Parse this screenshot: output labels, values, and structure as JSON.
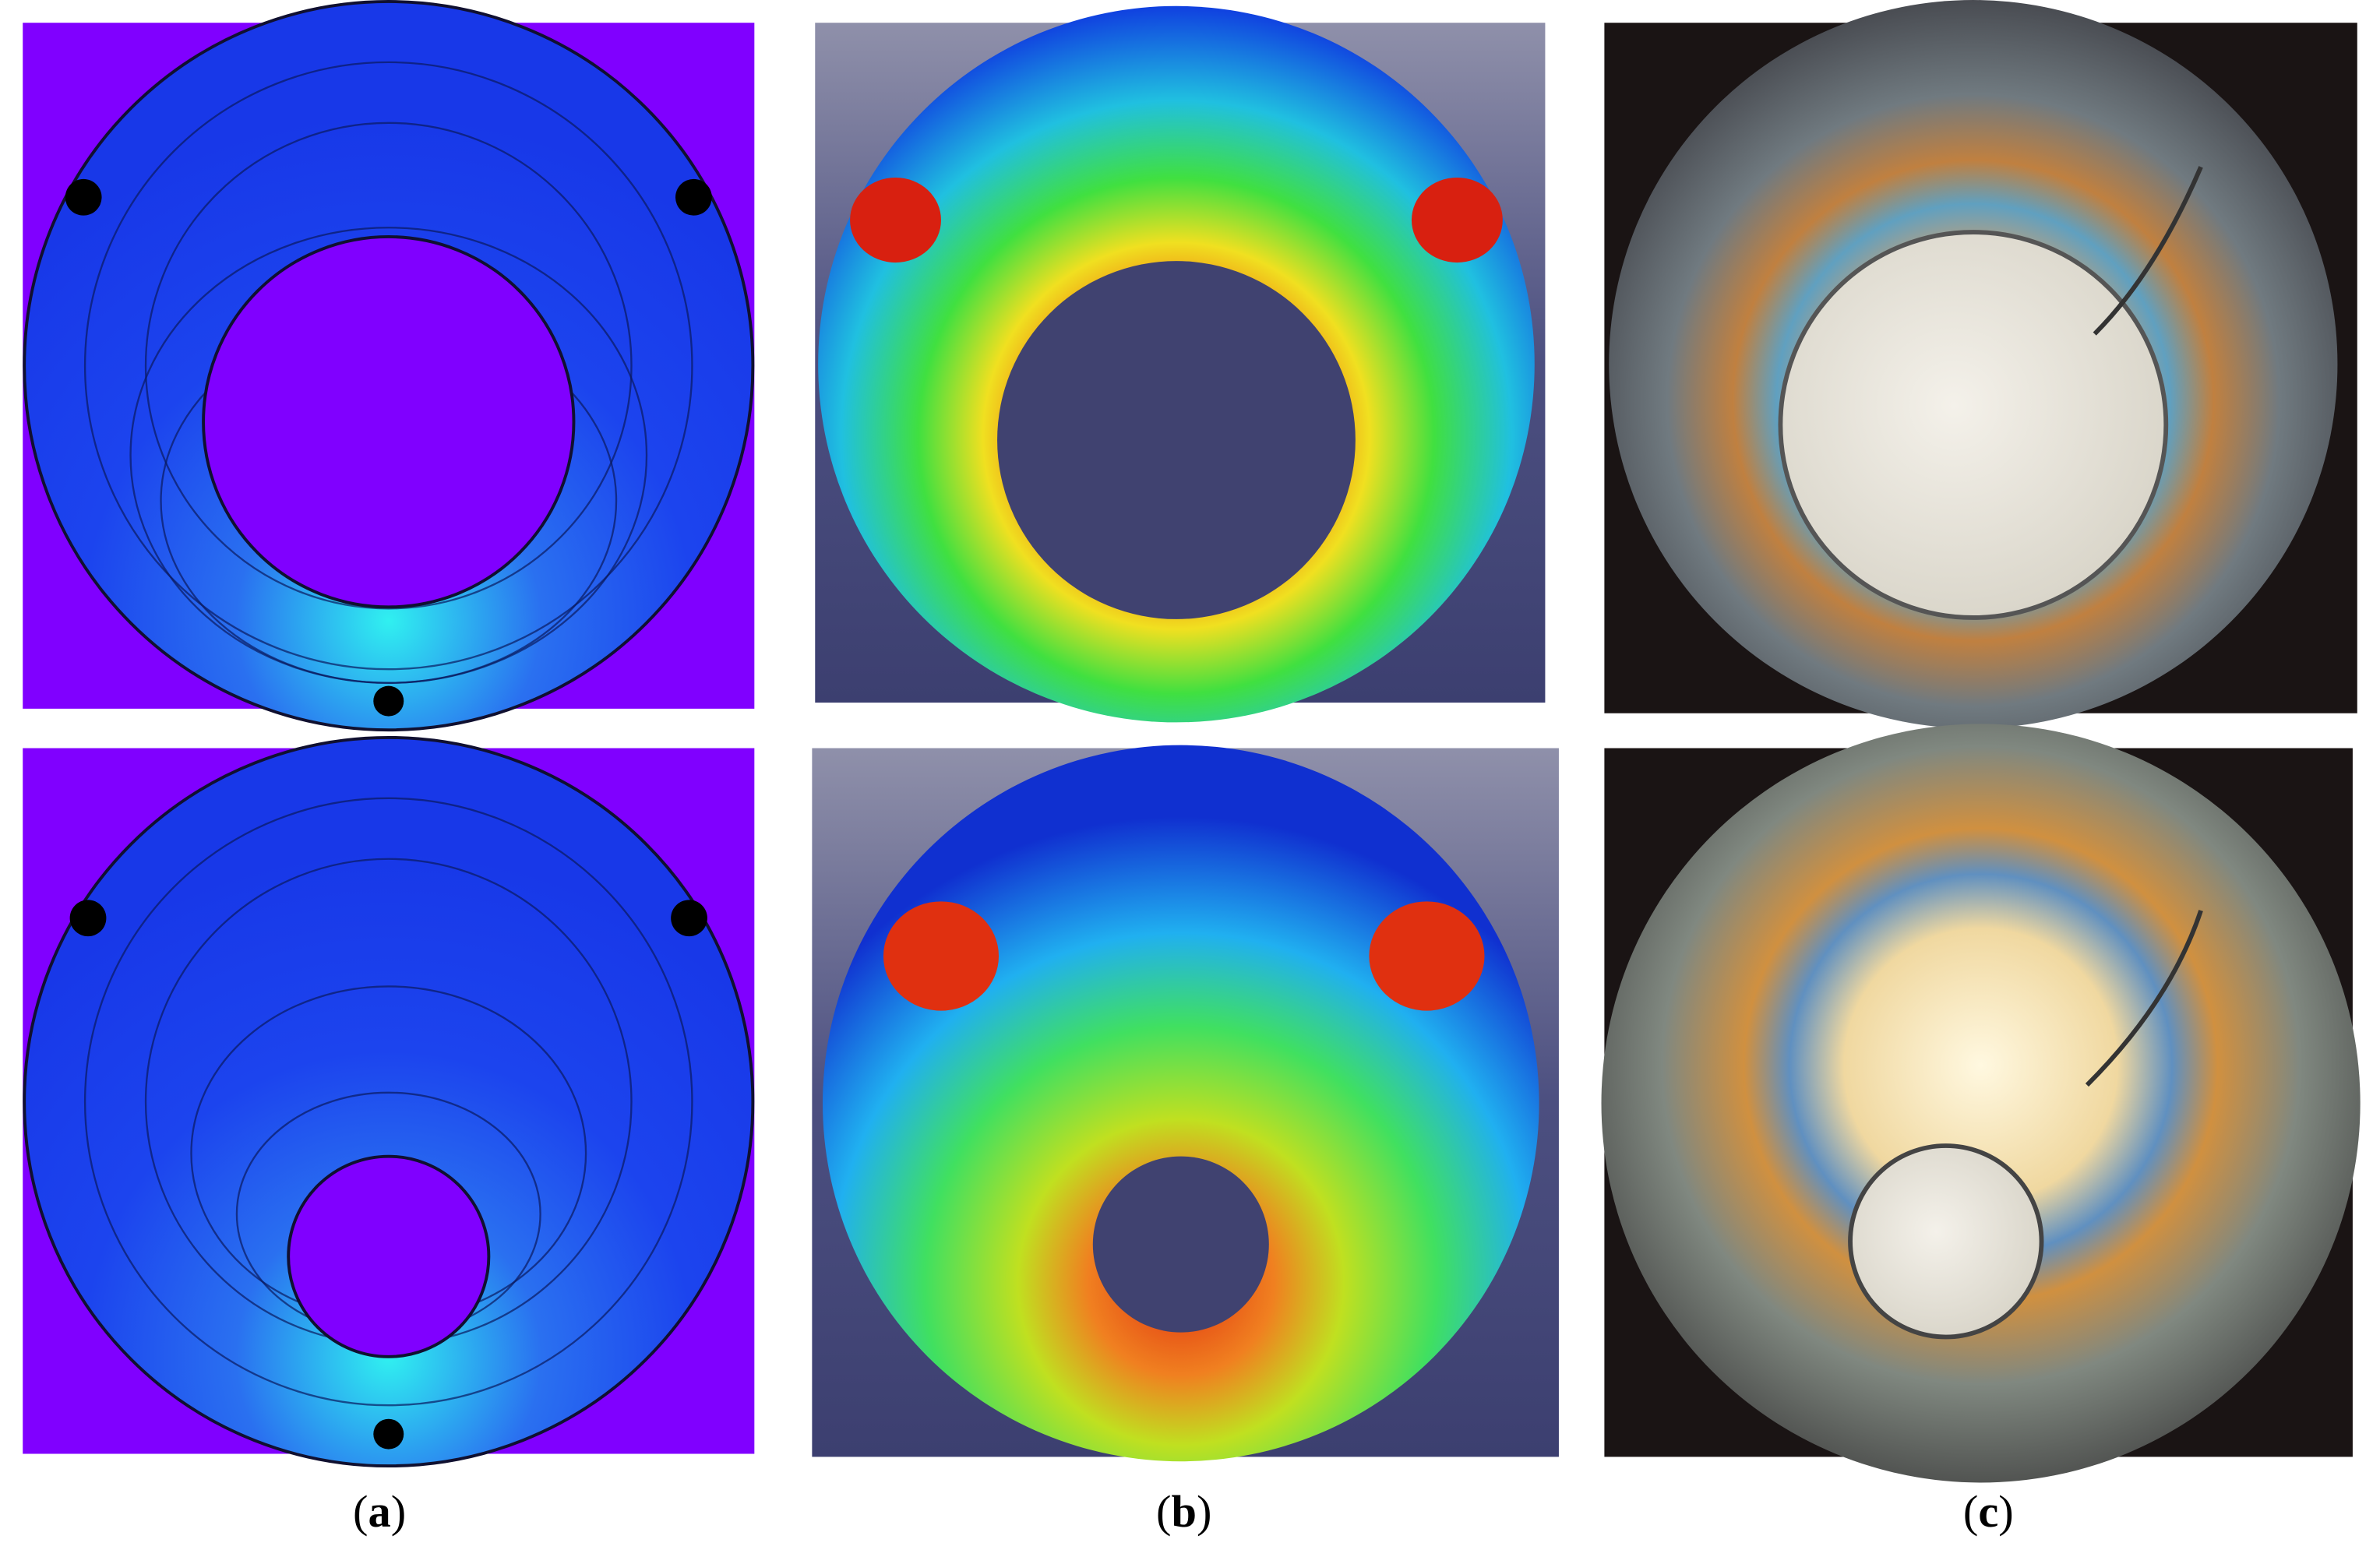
{
  "panels": [
    {
      "label": [
        "(",
        "a",
        ")"
      ]
    },
    {
      "label": [
        "(",
        "b",
        ")"
      ]
    },
    {
      "label": [
        "(",
        "c",
        ")"
      ]
    }
  ]
}
